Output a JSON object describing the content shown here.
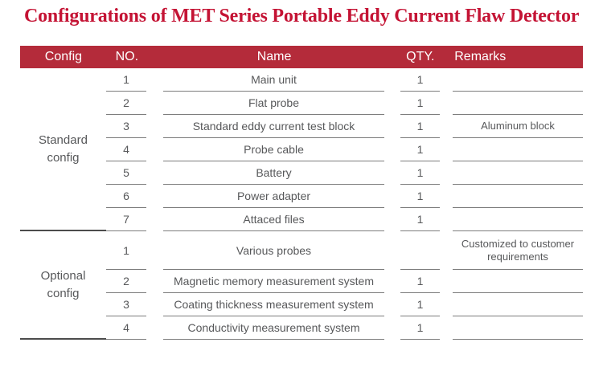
{
  "title": "Configurations of MET Series Portable Eddy Current Flaw Detector",
  "colors": {
    "accent_red": "#b42b3a",
    "title_red": "#c41334",
    "text_gray": "#57585a",
    "line_gray": "#7c7c7c",
    "group_line": "#4c4c4c",
    "header_text": "#ffffff"
  },
  "table": {
    "headers": [
      "Config",
      "NO.",
      "Name",
      "QTY.",
      "Remarks"
    ],
    "groups": [
      {
        "label": "Standard\nconfig",
        "rows": [
          {
            "no": "1",
            "name": "Main unit",
            "qty": "1",
            "remarks": ""
          },
          {
            "no": "2",
            "name": "Flat probe",
            "qty": "1",
            "remarks": ""
          },
          {
            "no": "3",
            "name": "Standard eddy current test block",
            "qty": "1",
            "remarks": "Aluminum block"
          },
          {
            "no": "4",
            "name": "Probe cable",
            "qty": "1",
            "remarks": ""
          },
          {
            "no": "5",
            "name": "Battery",
            "qty": "1",
            "remarks": ""
          },
          {
            "no": "6",
            "name": "Power adapter",
            "qty": "1",
            "remarks": ""
          },
          {
            "no": "7",
            "name": "Attaced files",
            "qty": "1",
            "remarks": ""
          }
        ]
      },
      {
        "label": "Optional\nconfig",
        "rows": [
          {
            "no": "1",
            "name": "Various probes",
            "qty": "",
            "remarks": "Customized to customer requirements"
          },
          {
            "no": "2",
            "name": "Magnetic memory measurement system",
            "qty": "1",
            "remarks": ""
          },
          {
            "no": "3",
            "name": "Coating thickness measurement system",
            "qty": "1",
            "remarks": ""
          },
          {
            "no": "4",
            "name": "Conductivity measurement system",
            "qty": "1",
            "remarks": ""
          }
        ]
      }
    ]
  }
}
